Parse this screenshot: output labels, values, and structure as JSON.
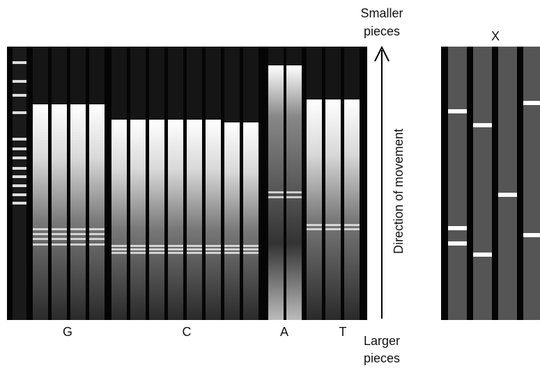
{
  "arrow": {
    "top_label": [
      "Smaller",
      "pieces"
    ],
    "bottom_label": [
      "Larger",
      "pieces"
    ],
    "caption": "Direction of movement"
  },
  "gel": {
    "lane_labels": [
      "G",
      "C",
      "A",
      "T"
    ]
  },
  "unknown": {
    "label": "X"
  }
}
